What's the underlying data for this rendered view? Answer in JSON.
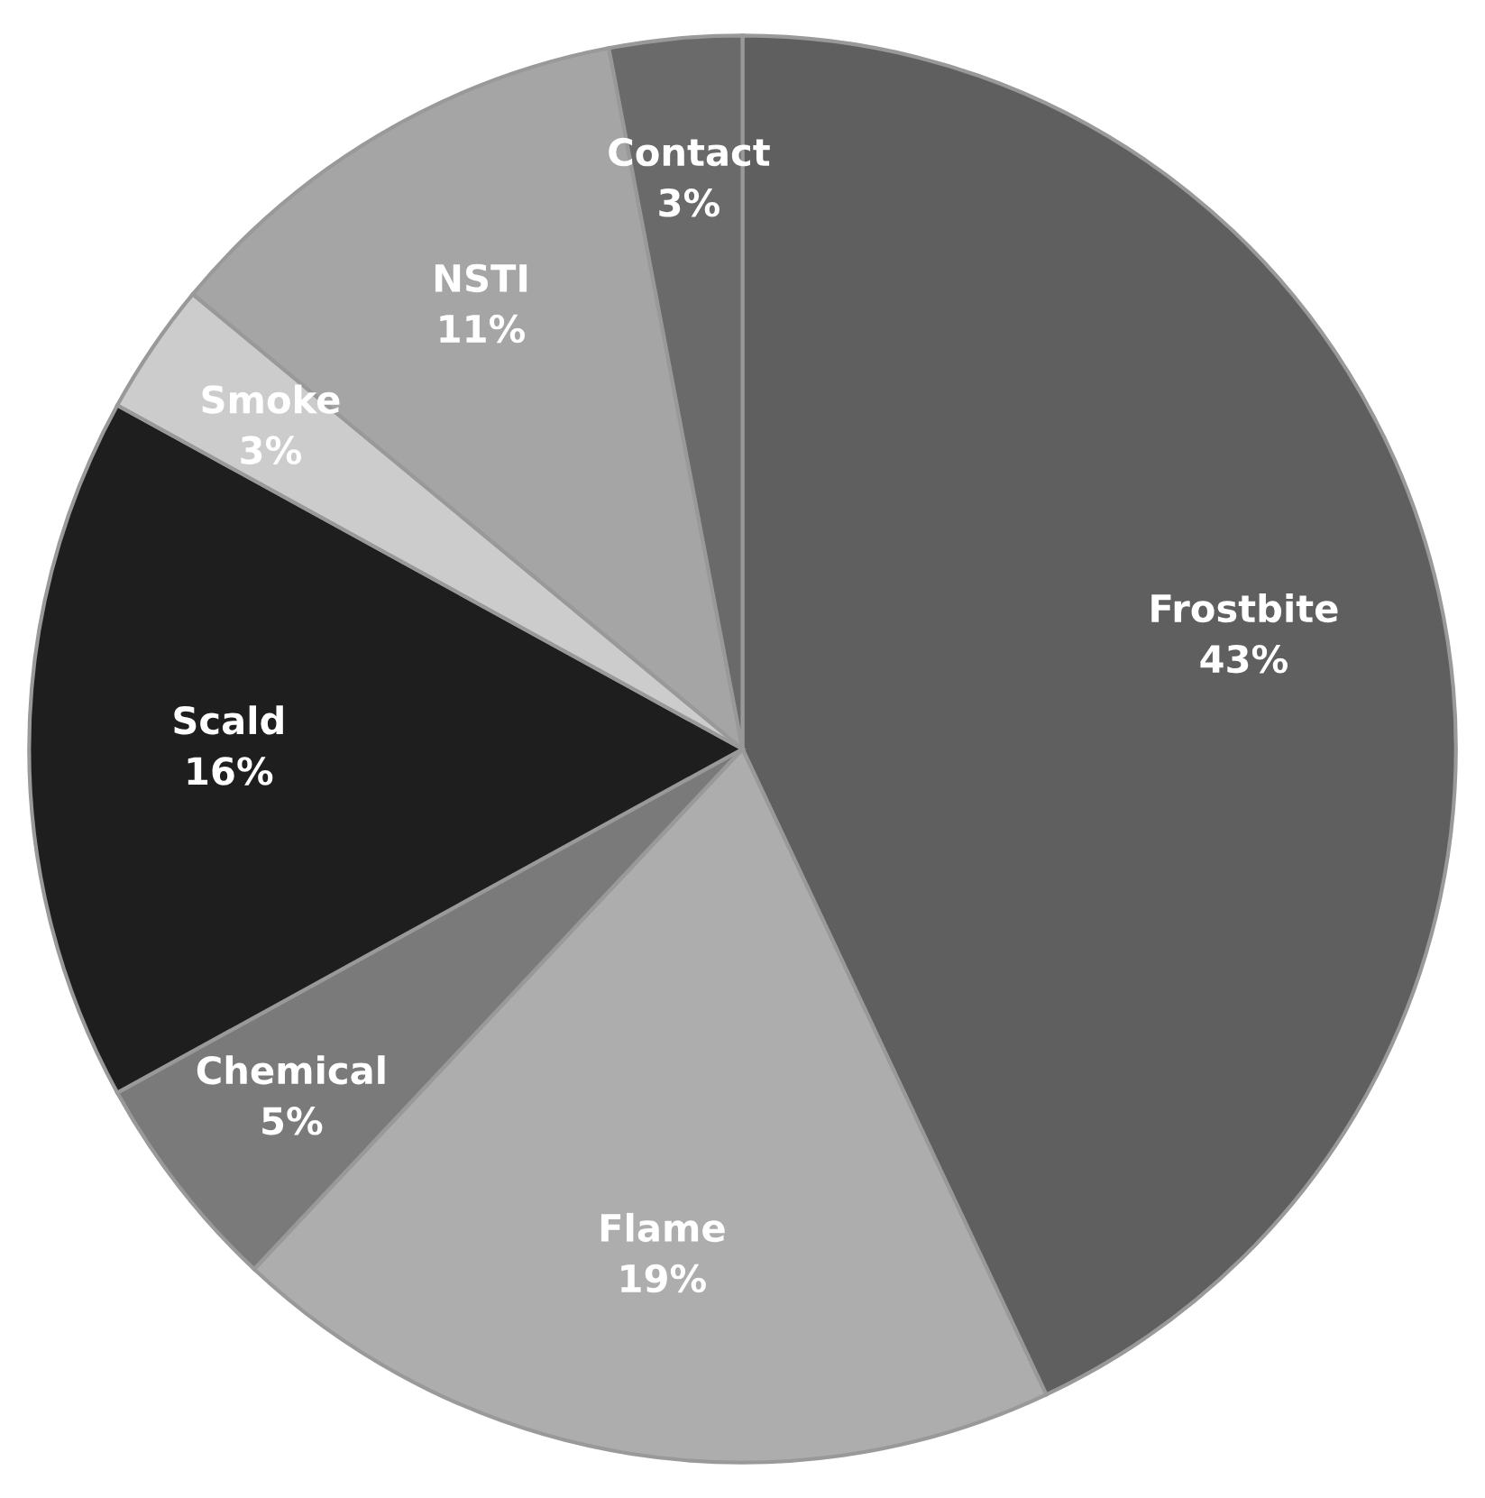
{
  "chart_data": {
    "type": "pie",
    "categories": [
      "Frostbite",
      "Flame",
      "Chemical",
      "Scald",
      "Smoke",
      "NSTI",
      "Contact"
    ],
    "values": [
      43,
      19,
      5,
      16,
      3,
      11,
      3
    ],
    "value_labels": [
      "43%",
      "19%",
      "5%",
      "16%",
      "3%",
      "11%",
      "3%"
    ],
    "colors": [
      "#5f5f5f",
      "#adadad",
      "#7a7a7a",
      "#1e1e1e",
      "#cccccc",
      "#a5a5a5",
      "#6a6a6a"
    ]
  }
}
